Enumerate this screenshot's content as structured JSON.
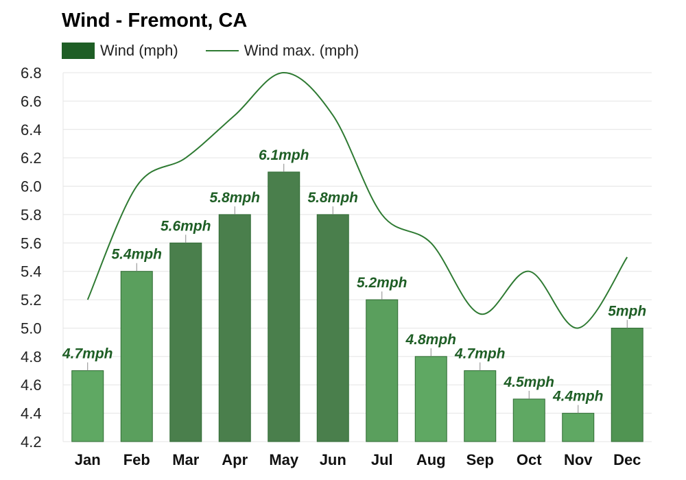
{
  "chart_data": {
    "type": "bar",
    "title": "Wind - Fremont, CA",
    "categories": [
      "Jan",
      "Feb",
      "Mar",
      "Apr",
      "May",
      "Jun",
      "Jul",
      "Aug",
      "Sep",
      "Oct",
      "Nov",
      "Dec"
    ],
    "series": [
      {
        "name": "Wind (mph)",
        "type": "bar",
        "values": [
          4.7,
          5.4,
          5.6,
          5.8,
          6.1,
          5.8,
          5.2,
          4.8,
          4.7,
          4.5,
          4.4,
          5.0
        ],
        "labels": [
          "4.7mph",
          "5.4mph",
          "5.6mph",
          "5.8mph",
          "6.1mph",
          "5.8mph",
          "5.2mph",
          "4.8mph",
          "4.7mph",
          "4.5mph",
          "4.4mph",
          "5mph"
        ],
        "colors": [
          "#5fa863",
          "#5a9f5d",
          "#4a7f4c",
          "#4a7f4c",
          "#4a7f4c",
          "#4a7f4c",
          "#5a9f5d",
          "#5fa863",
          "#5fa863",
          "#5fa863",
          "#5fa863",
          "#509452"
        ]
      },
      {
        "name": "Wind max. (mph)",
        "type": "line",
        "values": [
          5.2,
          6.0,
          6.2,
          6.5,
          6.8,
          6.5,
          5.8,
          5.6,
          5.1,
          5.4,
          5.0,
          5.5
        ],
        "color": "#2e7a32"
      }
    ],
    "ylim": [
      4.2,
      6.8
    ],
    "yticks": [
      "6.8",
      "6.6",
      "6.4",
      "6.2",
      "6.0",
      "5.8",
      "5.6",
      "5.4",
      "5.2",
      "5.0",
      "4.8",
      "4.6",
      "4.4",
      "4.2"
    ],
    "grid": true,
    "legend_position": "top-left"
  },
  "legend_colors": {
    "bar": "#1e5e25",
    "line": "#2e7a32"
  }
}
